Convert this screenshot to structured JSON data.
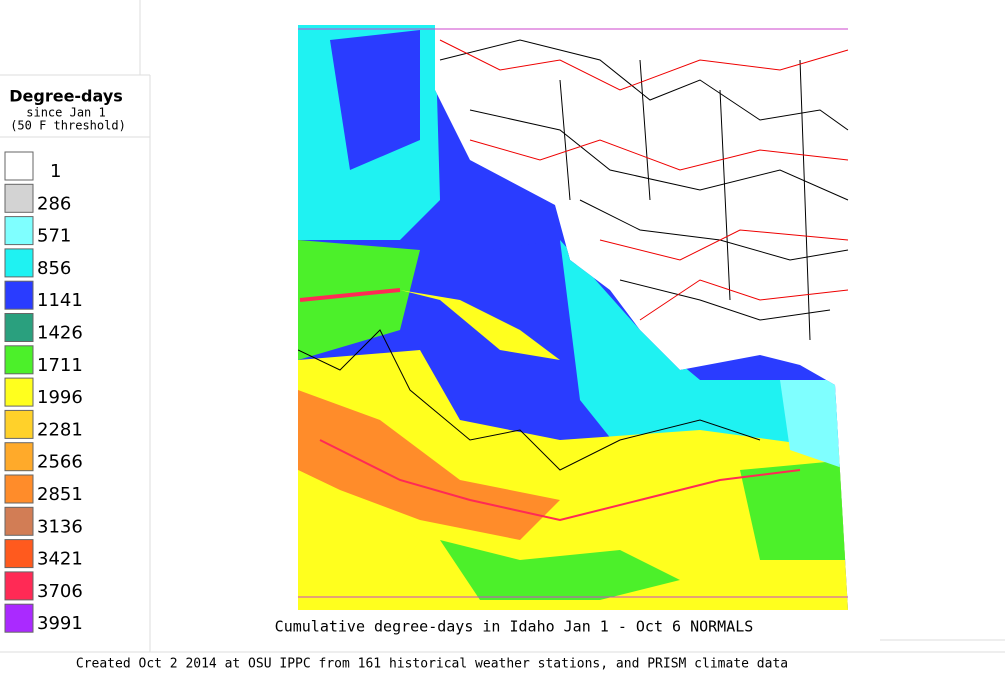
{
  "legend": {
    "title": "Degree-days",
    "subtitle": "since Jan 1",
    "note": "(50 F threshold)",
    "items": [
      {
        "value": 1,
        "color": "#ffffff"
      },
      {
        "value": 286,
        "color": "#d3d3d3"
      },
      {
        "value": 571,
        "color": "#7fffff"
      },
      {
        "value": 856,
        "color": "#1ff2f2"
      },
      {
        "value": 1141,
        "color": "#2a3cff"
      },
      {
        "value": 1426,
        "color": "#2aa07e"
      },
      {
        "value": 1711,
        "color": "#4cf02a"
      },
      {
        "value": 1996,
        "color": "#ffff1e"
      },
      {
        "value": 2281,
        "color": "#ffd12a"
      },
      {
        "value": 2566,
        "color": "#ffaa2a"
      },
      {
        "value": 2851,
        "color": "#ff8c2a"
      },
      {
        "value": 3136,
        "color": "#d27d55"
      },
      {
        "value": 3421,
        "color": "#ff5a1e"
      },
      {
        "value": 3706,
        "color": "#ff2a55"
      },
      {
        "value": 3991,
        "color": "#aa2aff"
      }
    ]
  },
  "map": {
    "caption": "Cumulative degree-days in Idaho  Jan 1 - Oct 6 NORMALS"
  },
  "footer": "Created Oct 2 2014 at OSU IPPC from 161 historical weather stations, and PRISM climate data"
}
